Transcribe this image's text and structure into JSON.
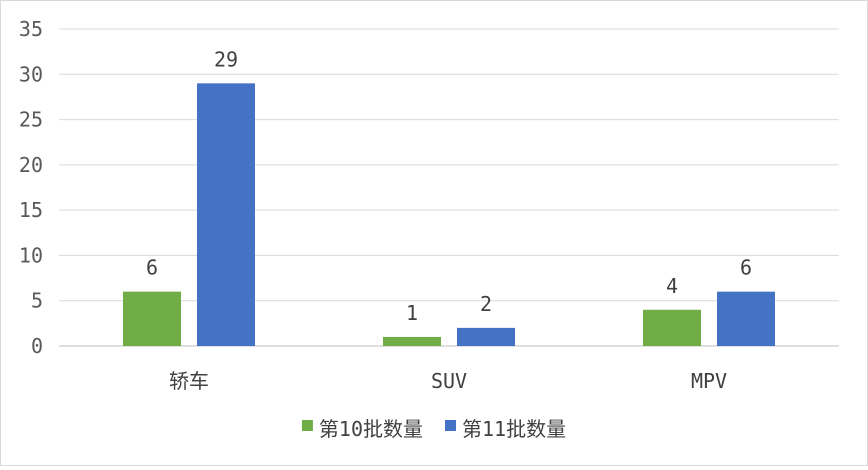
{
  "chart_data": {
    "type": "bar",
    "categories": [
      "轿车",
      "SUV",
      "MPV"
    ],
    "series": [
      {
        "name": "第10批数量",
        "values": [
          6,
          1,
          4
        ],
        "color": "#70ad47"
      },
      {
        "name": "第11批数量",
        "values": [
          29,
          2,
          6
        ],
        "color": "#4472c4"
      }
    ],
    "ylim": [
      0,
      35
    ],
    "yticks": [
      0,
      5,
      10,
      15,
      20,
      25,
      30,
      35
    ],
    "grid": true,
    "data_labels": true,
    "legend_position": "bottom"
  }
}
